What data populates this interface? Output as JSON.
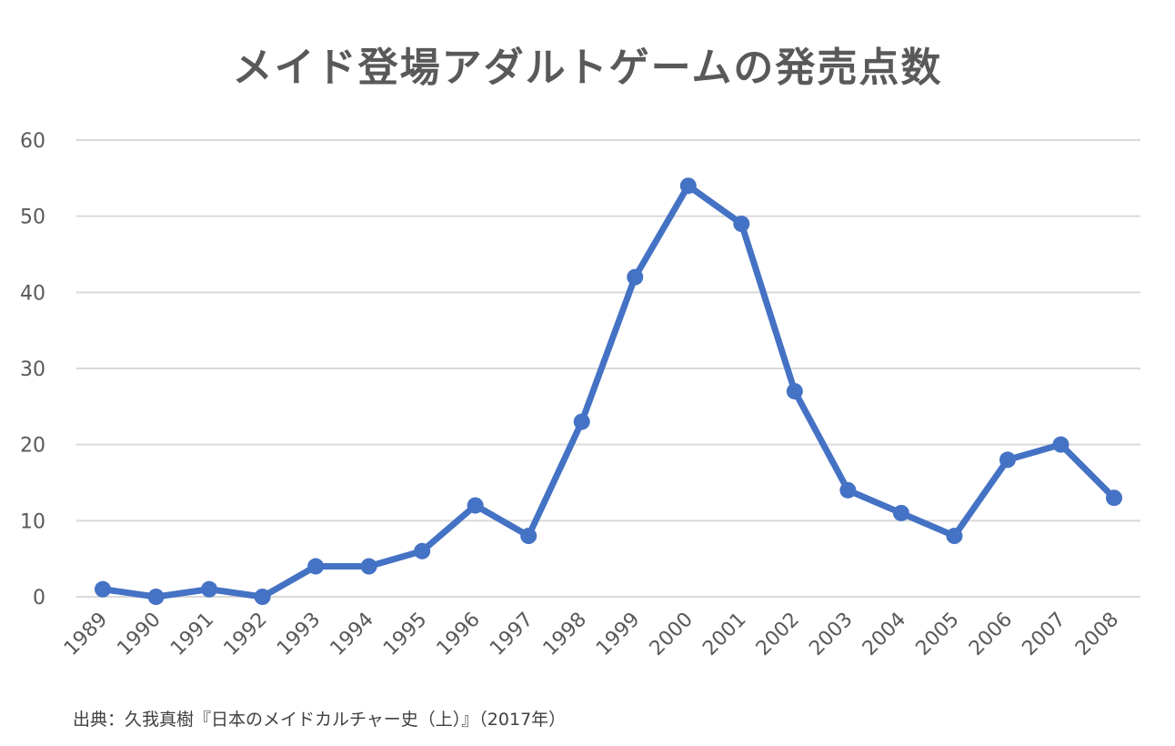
{
  "chart_data": {
    "type": "line",
    "title": "メイド登場アダルトゲームの発売点数",
    "xlabel": "",
    "ylabel": "",
    "categories": [
      "1989",
      "1990",
      "1991",
      "1992",
      "1993",
      "1994",
      "1995",
      "1996",
      "1997",
      "1998",
      "1999",
      "2000",
      "2001",
      "2002",
      "2003",
      "2004",
      "2005",
      "2006",
      "2007",
      "2008"
    ],
    "series": [
      {
        "values": [
          1,
          0,
          1,
          0,
          4,
          4,
          6,
          12,
          8,
          23,
          42,
          54,
          49,
          27,
          14,
          11,
          8,
          18,
          20,
          13
        ]
      }
    ],
    "ylim": [
      0,
      60
    ],
    "yticks": [
      0,
      10,
      20,
      30,
      40,
      50,
      60
    ],
    "grid": true,
    "legend": "none",
    "line_color": "#4472C4",
    "grid_color": "#D9D9D9"
  },
  "source_note": "出典：久我真樹『日本のメイドカルチャー史（上）』（2017年）"
}
